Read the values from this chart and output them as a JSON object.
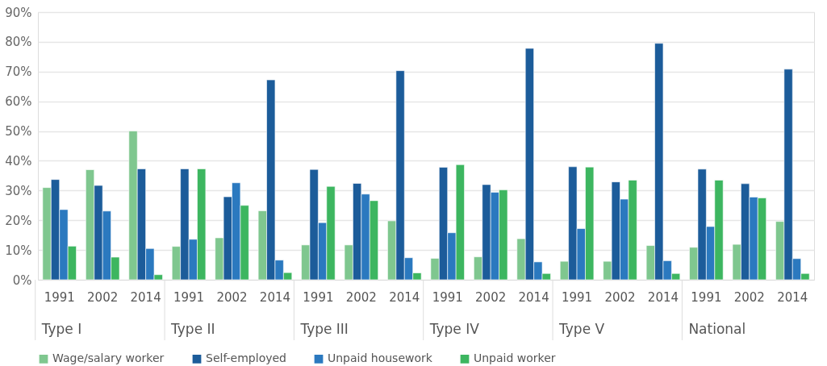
{
  "chart_data": {
    "type": "bar",
    "categories": [
      "1991",
      "2002",
      "2014",
      "1991",
      "2002",
      "2014",
      "1991",
      "2002",
      "2014",
      "1991",
      "2002",
      "2014",
      "1991",
      "2002",
      "2014",
      "1991",
      "2002",
      "2014"
    ],
    "annotations": [
      "Type I",
      "Type II",
      "Type III",
      "Type IV",
      "Type V",
      "National"
    ],
    "series": [
      {
        "name": "Wage/salary worker",
        "color": "#7fc78f",
        "values": [
          31,
          37,
          50,
          11.2,
          14.1,
          23.2,
          11.7,
          11.7,
          19.8,
          7.2,
          7.7,
          13.8,
          6.2,
          6.2,
          11.5,
          10.9,
          11.9,
          19.6
        ]
      },
      {
        "name": "Self-employed",
        "color": "#1c5c9a",
        "values": [
          33.7,
          31.7,
          37.3,
          37.3,
          27.9,
          67.2,
          37.1,
          32.4,
          70.3,
          37.8,
          32,
          77.8,
          38,
          32.9,
          79.5,
          37.2,
          32.3,
          70.8
        ]
      },
      {
        "name": "Unpaid housework",
        "color": "#2b79bf",
        "values": [
          23.6,
          23.1,
          10.5,
          13.6,
          32.6,
          6.6,
          19.2,
          28.8,
          7.4,
          15.8,
          29.4,
          6,
          17.2,
          27.1,
          6.4,
          17.9,
          27.8,
          7.1
        ]
      },
      {
        "name": "Unpaid worker",
        "color": "#3db660",
        "values": [
          11.3,
          7.6,
          1.7,
          37.3,
          25,
          2.4,
          31.4,
          26.6,
          2.3,
          38.7,
          30.2,
          2.1,
          37.9,
          33.5,
          2.1,
          33.5,
          27.5,
          2.1
        ]
      }
    ],
    "ylim": [
      0,
      90
    ],
    "yticks": [
      {
        "value": 0,
        "label": "0%"
      },
      {
        "value": 10,
        "label": "10%"
      },
      {
        "value": 20,
        "label": "20%"
      },
      {
        "value": 30,
        "label": "30%"
      },
      {
        "value": 40,
        "label": "40%"
      },
      {
        "value": 50,
        "label": "50%"
      },
      {
        "value": 60,
        "label": "60%"
      },
      {
        "value": 70,
        "label": "70%"
      },
      {
        "value": 80,
        "label": "80%"
      },
      {
        "value": 90,
        "label": "90%"
      }
    ],
    "grid": "y",
    "legend": "bottom"
  }
}
